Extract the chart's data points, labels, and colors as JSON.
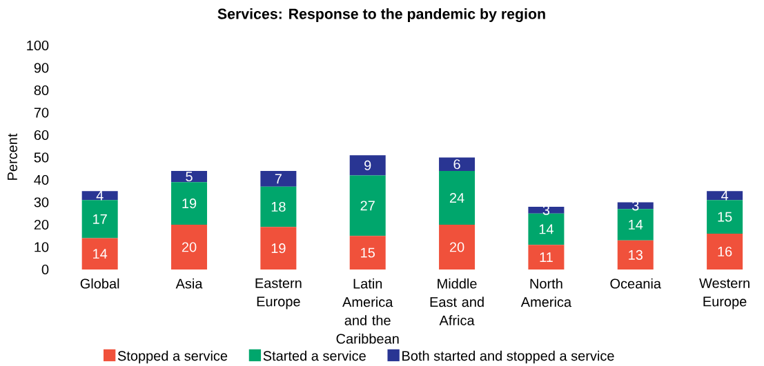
{
  "chart_data": {
    "type": "bar",
    "stacked": true,
    "title": "Services: Response to the pandemic by region",
    "ylabel": "Percent",
    "categories": [
      "Global",
      "Asia",
      "Eastern Europe",
      "Latin America and the Caribbean",
      "Middle East and Africa",
      "North America",
      "Oceania",
      "Western Europe"
    ],
    "series": [
      {
        "name": "Stopped a service",
        "color": "#f0513b",
        "values": [
          14,
          20,
          19,
          15,
          20,
          11,
          13,
          16
        ]
      },
      {
        "name": "Started a service",
        "color": "#00a66c",
        "values": [
          17,
          19,
          18,
          27,
          24,
          14,
          14,
          15
        ]
      },
      {
        "name": "Both started and stopped a service",
        "color": "#293593",
        "values": [
          4,
          5,
          7,
          9,
          6,
          3,
          3,
          4
        ]
      }
    ],
    "ylim": [
      0,
      100
    ],
    "yticks": [
      0,
      10,
      20,
      30,
      40,
      50,
      60,
      70,
      80,
      90,
      100
    ],
    "data_labels": true,
    "legend": "bottom",
    "grid": false
  }
}
